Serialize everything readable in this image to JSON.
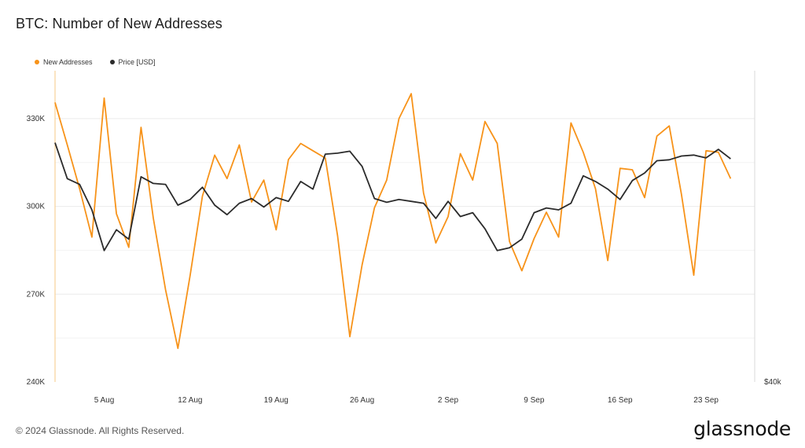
{
  "title": "BTC: Number of New Addresses",
  "footer": {
    "copyright": "© 2024 Glassnode. All Rights Reserved.",
    "brand": "glassnode"
  },
  "colors": {
    "new_addresses": "#f7931a",
    "price": "#2b2b2b",
    "grid": "#ececec"
  },
  "chart_data": {
    "type": "line",
    "title": "BTC: Number of New Addresses",
    "legend_position": "top-left",
    "grid": true,
    "x_start": "2024-08-01",
    "x_end": "2024-09-26",
    "x_ticks": [
      "5 Aug",
      "12 Aug",
      "19 Aug",
      "26 Aug",
      "2 Sep",
      "9 Sep",
      "16 Sep",
      "23 Sep"
    ],
    "x_tick_dates": [
      "2024-08-05",
      "2024-08-12",
      "2024-08-19",
      "2024-08-26",
      "2024-09-02",
      "2024-09-09",
      "2024-09-16",
      "2024-09-23"
    ],
    "y_left": {
      "ticks": [
        "240K",
        "270K",
        "300K",
        "330K"
      ],
      "tick_values": [
        240000,
        270000,
        300000,
        330000
      ],
      "range": [
        240000,
        345000
      ]
    },
    "y_right": {
      "ticks": [
        "$40k"
      ]
    },
    "series": [
      {
        "name": "New Addresses",
        "axis": "left",
        "dates": [
          "2024-08-01",
          "2024-08-02",
          "2024-08-03",
          "2024-08-04",
          "2024-08-05",
          "2024-08-06",
          "2024-08-07",
          "2024-08-08",
          "2024-08-09",
          "2024-08-10",
          "2024-08-11",
          "2024-08-12",
          "2024-08-13",
          "2024-08-14",
          "2024-08-15",
          "2024-08-16",
          "2024-08-17",
          "2024-08-18",
          "2024-08-19",
          "2024-08-20",
          "2024-08-21",
          "2024-08-22",
          "2024-08-23",
          "2024-08-24",
          "2024-08-25",
          "2024-08-26",
          "2024-08-27",
          "2024-08-28",
          "2024-08-29",
          "2024-08-30",
          "2024-08-31",
          "2024-09-01",
          "2024-09-02",
          "2024-09-03",
          "2024-09-04",
          "2024-09-05",
          "2024-09-06",
          "2024-09-07",
          "2024-09-08",
          "2024-09-09",
          "2024-09-10",
          "2024-09-11",
          "2024-09-12",
          "2024-09-13",
          "2024-09-14",
          "2024-09-15",
          "2024-09-16",
          "2024-09-17",
          "2024-09-18",
          "2024-09-19",
          "2024-09-20",
          "2024-09-21",
          "2024-09-22",
          "2024-09-23",
          "2024-09-24",
          "2024-09-25"
        ],
        "values": [
          335500,
          321000,
          306000,
          289500,
          337000,
          297500,
          286000,
          327000,
          296000,
          271500,
          251500,
          276500,
          303500,
          317500,
          309500,
          321000,
          301500,
          309000,
          292000,
          316000,
          321500,
          319000,
          316500,
          290000,
          255500,
          280000,
          299500,
          309000,
          330000,
          338500,
          304500,
          287500,
          296500,
          318000,
          309000,
          329000,
          321500,
          288000,
          278000,
          289000,
          298000,
          289500,
          328500,
          318500,
          306000,
          281500,
          313000,
          312500,
          303000,
          324000,
          327500,
          304000,
          276500,
          319000,
          318500,
          309500
        ]
      },
      {
        "name": "Price [USD]",
        "axis": "right",
        "dates": [
          "2024-08-01",
          "2024-08-02",
          "2024-08-03",
          "2024-08-04",
          "2024-08-05",
          "2024-08-06",
          "2024-08-07",
          "2024-08-08",
          "2024-08-09",
          "2024-08-10",
          "2024-08-11",
          "2024-08-12",
          "2024-08-13",
          "2024-08-14",
          "2024-08-15",
          "2024-08-16",
          "2024-08-17",
          "2024-08-18",
          "2024-08-19",
          "2024-08-20",
          "2024-08-21",
          "2024-08-22",
          "2024-08-23",
          "2024-08-24",
          "2024-08-25",
          "2024-08-26",
          "2024-08-27",
          "2024-08-28",
          "2024-08-29",
          "2024-08-30",
          "2024-08-31",
          "2024-09-01",
          "2024-09-02",
          "2024-09-03",
          "2024-09-04",
          "2024-09-05",
          "2024-09-06",
          "2024-09-07",
          "2024-09-08",
          "2024-09-09",
          "2024-09-10",
          "2024-09-11",
          "2024-09-12",
          "2024-09-13",
          "2024-09-14",
          "2024-09-15",
          "2024-09-16",
          "2024-09-17",
          "2024-09-18",
          "2024-09-19",
          "2024-09-20",
          "2024-09-21",
          "2024-09-22",
          "2024-09-23",
          "2024-09-24",
          "2024-09-25"
        ],
        "values": [
          65300,
          61500,
          60900,
          58200,
          53900,
          56100,
          55100,
          61700,
          61000,
          60900,
          58700,
          59300,
          60600,
          58700,
          57700,
          58900,
          59400,
          58500,
          59500,
          59100,
          61200,
          60400,
          64100,
          64200,
          64400,
          62800,
          59400,
          59000,
          59300,
          59100,
          58900,
          57300,
          59100,
          57500,
          57900,
          56200,
          53900,
          54200,
          55100,
          57900,
          58400,
          58200,
          58900,
          61800,
          61200,
          60400,
          59300,
          61300,
          62100,
          63400,
          63500,
          63900,
          64000,
          63700,
          64600,
          63600
        ]
      }
    ]
  }
}
